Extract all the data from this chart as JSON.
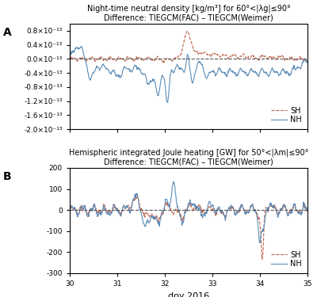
{
  "panel_A_title_line1": "Night-time neutral density [kg/m³] for 60°<|λg|≤90°",
  "panel_A_title_line2": "Difference: TIEGCM(FAC) – TIEGCM(Weimer)",
  "panel_B_title_line1": "Hemispheric integrated Joule heating [GW] for 50°<|λm|≤90°",
  "panel_B_title_line2": "Difference: TIEGCM(FAC) – TIEGCM(Weimer)",
  "xlabel": "doy 2016",
  "xmin": 30.0,
  "xmax": 35.0,
  "xticks": [
    30.0,
    31.0,
    32.0,
    33.0,
    34.0,
    35.0
  ],
  "panel_A_ylim": [
    -2e-13,
    1e-13
  ],
  "panel_A_yticks": [
    -2e-13,
    -1.6e-13,
    -1.2e-13,
    -8e-14,
    -4e-14,
    0.0,
    4e-14,
    8e-14
  ],
  "panel_B_ylim": [
    -300,
    200
  ],
  "panel_B_yticks": [
    -300,
    -200,
    -100,
    0,
    100,
    200
  ],
  "color_SH": "#c0614a",
  "color_NH": "#5b8db8",
  "color_zero": "#555555",
  "background": "#ffffff",
  "label_A": "A",
  "label_B": "B",
  "legend_SH": "SH",
  "legend_NH": "NH",
  "title_fontsize": 7.0,
  "tick_fontsize": 6.5,
  "legend_fontsize": 7.0,
  "label_fontsize": 10.0,
  "xlabel_fontsize": 8.0
}
